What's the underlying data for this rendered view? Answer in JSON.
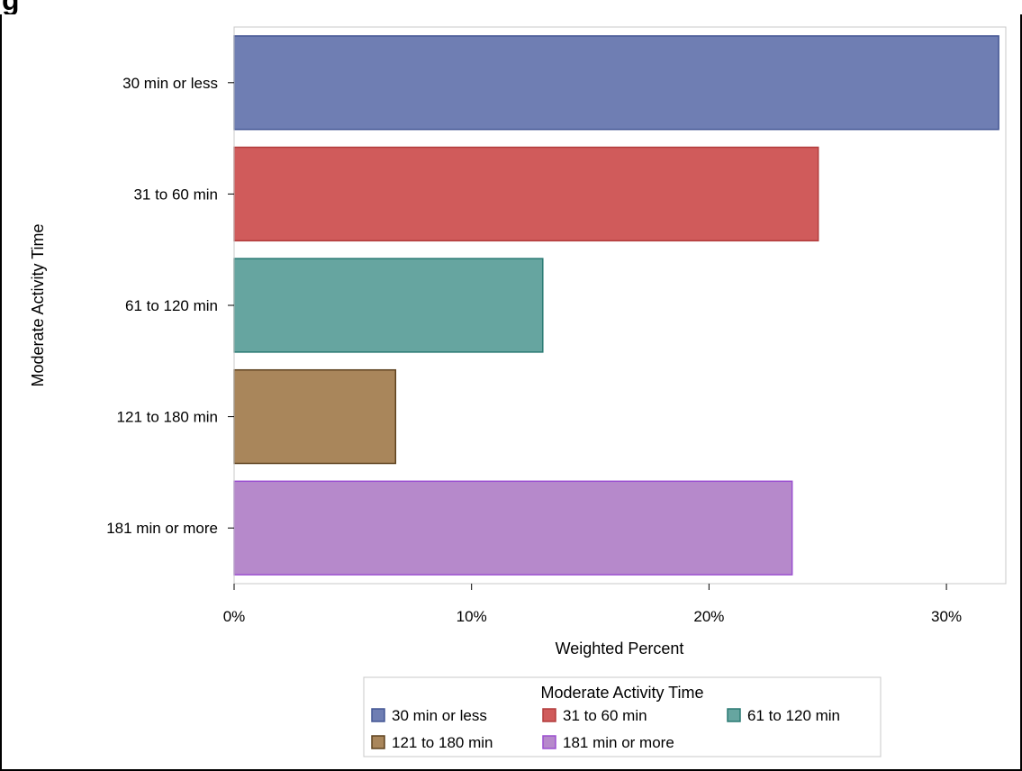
{
  "page": {
    "title": "g"
  },
  "chart_data": {
    "type": "bar",
    "orientation": "horizontal",
    "categories": [
      "30 min or less",
      "31 to 60 min",
      "61 to 120 min",
      "121 to 180 min",
      "181 min or more"
    ],
    "values": [
      32.2,
      24.6,
      13.0,
      6.8,
      23.5
    ],
    "colors": [
      "#6f7eb3",
      "#d05b5b",
      "#66a5a0",
      "#a9865b",
      "#b689cb"
    ],
    "edge_colors": [
      "#445694",
      "#b23c3c",
      "#2a7a73",
      "#5e421e",
      "#9b4fd0"
    ],
    "xlabel": "Weighted Percent",
    "ylabel": "Moderate Activity Time",
    "xlim": [
      0,
      32.5
    ],
    "xticks": [
      0,
      10,
      20,
      30
    ],
    "xtick_labels": [
      "0%",
      "10%",
      "20%",
      "30%"
    ],
    "grid": false,
    "legend": {
      "title": "Moderate Activity Time",
      "position": "bottom-center",
      "entries": [
        "30 min or less",
        "31 to 60 min",
        "61 to 120 min",
        "121 to 180 min",
        "181 min or more"
      ]
    }
  }
}
